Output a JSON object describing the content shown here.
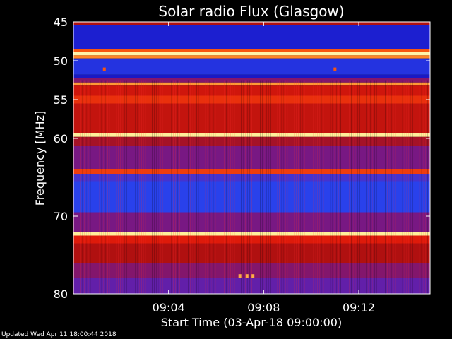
{
  "chart_data": {
    "type": "heatmap",
    "title": "Solar radio Flux (Glasgow)",
    "xlabel": "Start Time (03-Apr-18 09:00:00)",
    "ylabel": "Frequency [MHz]",
    "x_unit": "minutes after 09:00:00",
    "xlim": [
      0,
      15.0
    ],
    "ylim": [
      45,
      80
    ],
    "y_inverted": true,
    "x_ticks": [
      {
        "value": 4,
        "label": "09:04"
      },
      {
        "value": 8,
        "label": "09:08"
      },
      {
        "value": 12,
        "label": "09:12"
      }
    ],
    "y_ticks": [
      {
        "value": 45,
        "label": "45"
      },
      {
        "value": 50,
        "label": "50"
      },
      {
        "value": 55,
        "label": "55"
      },
      {
        "value": 60,
        "label": "60"
      },
      {
        "value": 70,
        "label": "70"
      },
      {
        "value": 80,
        "label": "80"
      }
    ],
    "colormap": [
      "#000000",
      "#1a1acc",
      "#2a44ee",
      "#6a1aa0",
      "#b01010",
      "#e01a0a",
      "#ff6a10",
      "#ffe070",
      "#ffffd0"
    ],
    "frequency_bands": [
      {
        "from": 45.0,
        "to": 45.4,
        "level": 0.5
      },
      {
        "from": 45.4,
        "to": 48.5,
        "level": 0.14
      },
      {
        "from": 48.5,
        "to": 48.9,
        "level": 0.72
      },
      {
        "from": 48.9,
        "to": 49.3,
        "level": 0.95
      },
      {
        "from": 49.3,
        "to": 49.7,
        "level": 0.78
      },
      {
        "from": 49.7,
        "to": 51.8,
        "level": 0.2
      },
      {
        "from": 51.8,
        "to": 52.2,
        "level": 0.12
      },
      {
        "from": 52.2,
        "to": 52.8,
        "level": 0.42
      },
      {
        "from": 52.8,
        "to": 53.2,
        "level": 0.8
      },
      {
        "from": 53.2,
        "to": 54.5,
        "level": 0.58
      },
      {
        "from": 54.5,
        "to": 55.5,
        "level": 0.66
      },
      {
        "from": 55.5,
        "to": 59.3,
        "level": 0.55
      },
      {
        "from": 59.3,
        "to": 59.8,
        "level": 0.93
      },
      {
        "from": 59.8,
        "to": 61.0,
        "level": 0.48
      },
      {
        "from": 61.0,
        "to": 64.0,
        "level": 0.4
      },
      {
        "from": 64.0,
        "to": 64.6,
        "level": 0.68
      },
      {
        "from": 64.6,
        "to": 65.5,
        "level": 0.3
      },
      {
        "from": 65.5,
        "to": 69.5,
        "level": 0.24
      },
      {
        "from": 69.5,
        "to": 72.0,
        "level": 0.4
      },
      {
        "from": 72.0,
        "to": 72.5,
        "level": 0.93
      },
      {
        "from": 72.5,
        "to": 73.5,
        "level": 0.62
      },
      {
        "from": 73.5,
        "to": 76.0,
        "level": 0.5
      },
      {
        "from": 76.0,
        "to": 78.0,
        "level": 0.42
      },
      {
        "from": 78.0,
        "to": 80.0,
        "level": 0.36
      }
    ],
    "bursts": [
      {
        "time": 1.3,
        "freq": 51.1,
        "level": 0.72
      },
      {
        "time": 11.0,
        "freq": 51.1,
        "level": 0.72
      },
      {
        "time": 7.0,
        "freq": 77.7,
        "level": 0.82
      },
      {
        "time": 7.3,
        "freq": 77.7,
        "level": 0.82
      },
      {
        "time": 7.55,
        "freq": 77.7,
        "level": 0.82
      }
    ]
  },
  "footer_text": "Updated Wed Apr 11 18:00:44 2018"
}
